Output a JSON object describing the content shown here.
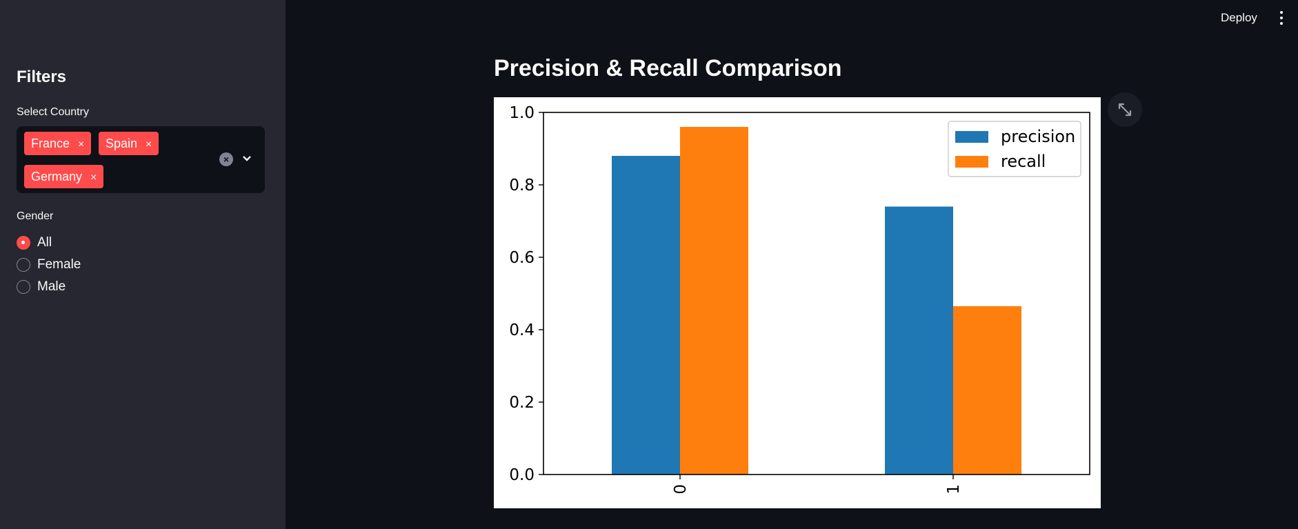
{
  "header": {
    "deploy_label": "Deploy",
    "menu_icon": "kebab-menu-icon"
  },
  "sidebar": {
    "title": "Filters",
    "country": {
      "label": "Select Country",
      "tags": [
        "France",
        "Spain",
        "Germany"
      ],
      "remove_glyph": "×"
    },
    "gender": {
      "label": "Gender",
      "options": [
        "All",
        "Female",
        "Male"
      ],
      "selected": "All"
    }
  },
  "main": {
    "title": "Precision & Recall Comparison",
    "expand_icon": "fullscreen-expand-icon"
  },
  "colors": {
    "accent": "#ff4b4b",
    "bg": "#0e1117",
    "sidebar": "#262730"
  },
  "chart_data": {
    "type": "bar",
    "categories": [
      "0",
      "1"
    ],
    "series": [
      {
        "name": "precision",
        "values": [
          0.88,
          0.74
        ],
        "color": "#1f77b4"
      },
      {
        "name": "recall",
        "values": [
          0.96,
          0.465
        ],
        "color": "#ff7f0e"
      }
    ],
    "yticks": [
      "0.0",
      "0.2",
      "0.4",
      "0.6",
      "0.8",
      "1.0"
    ],
    "ylim": [
      0,
      1.0
    ],
    "legend": "top-right",
    "grid": false,
    "xtick_rotation": "vertical"
  }
}
